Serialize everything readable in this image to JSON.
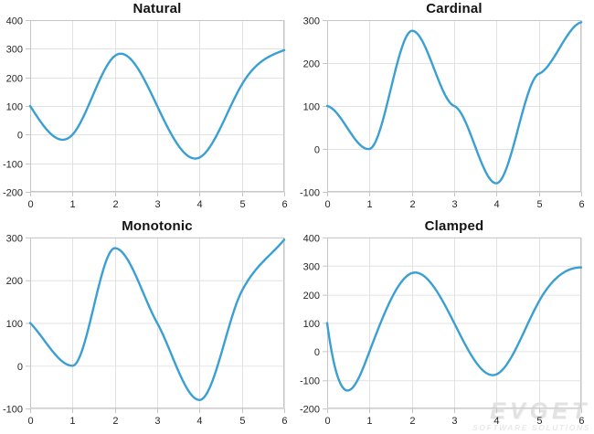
{
  "style": {
    "background": "#FFFFFF",
    "series_color": "#3A9FD2",
    "grid_color": "#E2E2E2",
    "border_color": "#C6C6C6",
    "tick_color": "#C6C6C6",
    "tick_label_color": "#262626",
    "title_color": "#141414"
  },
  "watermark": {
    "title": "EVGET",
    "subtitle": "SOFTWARE SOLUTIONS"
  },
  "chart_data": [
    {
      "type": "line",
      "title": "Natural",
      "interpolation": "natural",
      "x": [
        0,
        1,
        2,
        3,
        4,
        5,
        6
      ],
      "y": [
        100,
        0,
        275,
        100,
        -80,
        175,
        295
      ],
      "xlim": [
        0,
        6
      ],
      "ylim": [
        -200,
        400
      ],
      "xticks": [
        0,
        1,
        2,
        3,
        4,
        5,
        6
      ],
      "yticks": [
        -200,
        -100,
        0,
        100,
        200,
        300,
        400
      ],
      "grid": true,
      "legend": false
    },
    {
      "type": "line",
      "title": "Cardinal",
      "interpolation": "cardinal",
      "tension": 0.8,
      "x": [
        0,
        1,
        2,
        3,
        4,
        5,
        6
      ],
      "y": [
        100,
        0,
        275,
        100,
        -80,
        175,
        295
      ],
      "xlim": [
        0,
        6
      ],
      "ylim": [
        -100,
        300
      ],
      "xticks": [
        0,
        1,
        2,
        3,
        4,
        5,
        6
      ],
      "yticks": [
        -100,
        0,
        100,
        200,
        300
      ],
      "grid": true,
      "legend": false
    },
    {
      "type": "line",
      "title": "Monotonic",
      "interpolation": "monotonic",
      "x": [
        0,
        1,
        2,
        3,
        4,
        5,
        6
      ],
      "y": [
        100,
        0,
        275,
        100,
        -80,
        175,
        295
      ],
      "xlim": [
        0,
        6
      ],
      "ylim": [
        -100,
        300
      ],
      "xticks": [
        0,
        1,
        2,
        3,
        4,
        5,
        6
      ],
      "yticks": [
        -100,
        0,
        100,
        200,
        300
      ],
      "grid": true,
      "legend": false
    },
    {
      "type": "line",
      "title": "Clamped",
      "interpolation": "clamped",
      "start_slope": -1100,
      "end_slope": 0,
      "x": [
        0,
        1,
        2,
        3,
        4,
        5,
        6
      ],
      "y": [
        100,
        0,
        275,
        100,
        -80,
        175,
        295
      ],
      "xlim": [
        0,
        6
      ],
      "ylim": [
        -200,
        400
      ],
      "xticks": [
        0,
        1,
        2,
        3,
        4,
        5,
        6
      ],
      "yticks": [
        -200,
        -100,
        0,
        100,
        200,
        300,
        400
      ],
      "grid": true,
      "legend": false
    }
  ]
}
